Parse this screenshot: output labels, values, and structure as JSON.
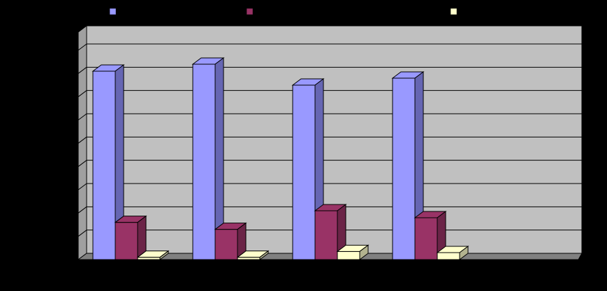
{
  "chart_data": {
    "type": "bar",
    "style": "3d-clustered-column",
    "title": "",
    "xlabel": "",
    "ylabel": "",
    "categories": [
      "",
      "",
      "",
      ""
    ],
    "ylim": [
      0,
      9
    ],
    "grid": true,
    "legend_position": "top",
    "series": [
      {
        "color": "#9999FF",
        "side_color": "#6666B3",
        "values": [
          8.1,
          8.4,
          7.5,
          7.8
        ]
      },
      {
        "color": "#993366",
        "side_color": "#6B2447",
        "values": [
          1.6,
          1.3,
          2.1,
          1.8
        ]
      },
      {
        "color": "#FFFFCC",
        "side_color": "#B3B38F",
        "values": [
          0.1,
          0.1,
          0.35,
          0.3
        ]
      }
    ],
    "colors": {
      "background": "#000000",
      "plot_back_wall": "#C0C0C0",
      "plot_side_wall": "#A0A0A0",
      "plot_floor": "#808080",
      "gridline": "#000000"
    }
  }
}
